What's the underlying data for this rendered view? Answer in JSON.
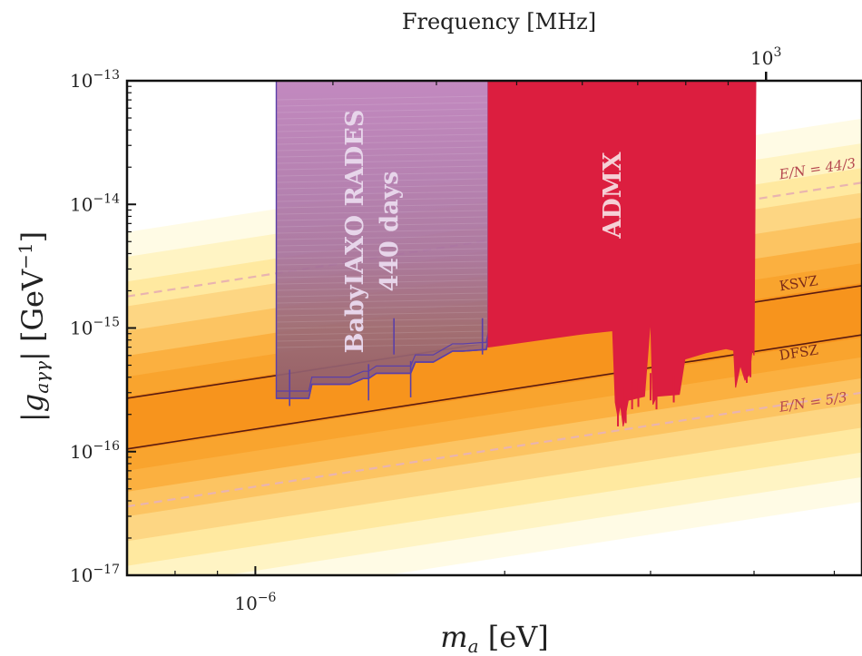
{
  "chart_data": {
    "type": "area",
    "title": "",
    "top_axis_label": "Frequency [MHz]",
    "top_axis_ticks": [
      {
        "value": 1000,
        "label": "10",
        "exp": "3"
      }
    ],
    "xlabel": "m",
    "xlabel_sub": "a",
    "xlabel_unit": " [eV]",
    "ylabel": "|g_aγγ| [GeV^-1]",
    "ylabel_main": "|g",
    "ylabel_sub": "aγγ",
    "ylabel_unit": "| [GeV",
    "ylabel_unit_exp": "−1",
    "ylabel_unit_close": "]",
    "x_scale": "log",
    "y_scale": "log",
    "xlim": [
      7e-07,
      5.4e-06
    ],
    "ylim": [
      1e-17,
      1e-13
    ],
    "x_ticks": [
      {
        "value": 1e-06,
        "label": "10",
        "exp": "−6"
      }
    ],
    "y_ticks": [
      {
        "value": 1e-13,
        "label": "10",
        "exp": "−13"
      },
      {
        "value": 1e-14,
        "label": "10",
        "exp": "−14"
      },
      {
        "value": 1e-15,
        "label": "10",
        "exp": "−15"
      },
      {
        "value": 1e-16,
        "label": "10",
        "exp": "−16"
      },
      {
        "value": 1e-17,
        "label": "10",
        "exp": "−17"
      }
    ],
    "grid": false,
    "axion_band": {
      "colors": [
        "#f7941d",
        "#fbb040",
        "#fdd683",
        "#fff5c9"
      ],
      "lines": [
        {
          "name": "KSVZ",
          "x": [
            7e-07,
            5.4e-06
          ],
          "y": [
            2.7e-16,
            2.2e-15
          ],
          "color": "#5a1a10",
          "style": "solid"
        },
        {
          "name": "DFSZ",
          "x": [
            7e-07,
            5.4e-06
          ],
          "y": [
            1.05e-16,
            8.8e-16
          ],
          "color": "#5a1a10",
          "style": "solid"
        },
        {
          "name": "E/N = 44/3",
          "x": [
            7e-07,
            5.4e-06
          ],
          "y": [
            1.8e-15,
            1.5e-14
          ],
          "color": "#e9b4b0",
          "style": "dashed"
        },
        {
          "name": "E/N = 5/3",
          "x": [
            7e-07,
            5.4e-06
          ],
          "y": [
            3.6e-17,
            3e-16
          ],
          "color": "#e9b4b0",
          "style": "dashed"
        }
      ],
      "labels": [
        {
          "text": "E/N = 44/3",
          "x": 4.3e-06,
          "y": 1.6e-14,
          "color": "#b5474f"
        },
        {
          "text": "KSVZ",
          "x": 4.3e-06,
          "y": 2e-15,
          "color": "#7a2a18"
        },
        {
          "text": "DFSZ",
          "x": 4.3e-06,
          "y": 5.5e-16,
          "color": "#7a2a18"
        },
        {
          "text": "E/N = 5/3",
          "x": 4.3e-06,
          "y": 2.1e-16,
          "color": "#b5474f"
        }
      ]
    },
    "series": [
      {
        "name": "BabyIAXO RADES",
        "label_line1": "BabyIAXO RADES",
        "label_line2": "440 days",
        "color": "#9b59b6",
        "edge_color": "#5b3fa8",
        "x": [
          1.06e-06,
          1.06e-06,
          1.16e-06,
          1.17e-06,
          1.3e-06,
          1.35e-06,
          1.37e-06,
          1.4e-06,
          1.54e-06,
          1.56e-06,
          1.64e-06,
          1.73e-06,
          1.78e-06,
          1.9e-06,
          1.91e-06,
          1.91e-06
        ],
        "y": [
          1e-13,
          2.7e-16,
          2.7e-16,
          3.5e-16,
          3.5e-16,
          3.9e-16,
          3.9e-16,
          4.3e-16,
          4.3e-16,
          5.3e-16,
          5.3e-16,
          6.5e-16,
          6.5e-16,
          6.7e-16,
          8e-16,
          1e-13
        ]
      },
      {
        "name": "ADMX",
        "label": "ADMX",
        "color": "#dc1e3f",
        "x": [
          1.91e-06,
          1.91e-06,
          2.2e-06,
          2.5e-06,
          2.7e-06,
          2.72e-06,
          2.74e-06,
          2.76e-06,
          2.78e-06,
          2.82e-06,
          2.95e-06,
          3e-06,
          3.02e-06,
          3.05e-06,
          3.25e-06,
          3.3e-06,
          3.5e-06,
          3.7e-06,
          3.78e-06,
          3.8e-06,
          3.85e-06,
          3.9e-06,
          3.95e-06,
          3.98e-06,
          4e-06,
          4.02e-06
        ],
        "y": [
          1e-13,
          7e-16,
          8e-16,
          9e-16,
          9.5e-16,
          2.5e-16,
          1.9e-16,
          2.4e-16,
          1.6e-16,
          2.6e-16,
          2.8e-16,
          1.2e-15,
          2.4e-16,
          2.8e-16,
          2.9e-16,
          5.6e-16,
          6.3e-16,
          6.8e-16,
          6.6e-16,
          3.3e-16,
          5e-16,
          3.8e-16,
          4.2e-16,
          6.8e-16,
          6e-16,
          1e-13
        ]
      }
    ]
  }
}
